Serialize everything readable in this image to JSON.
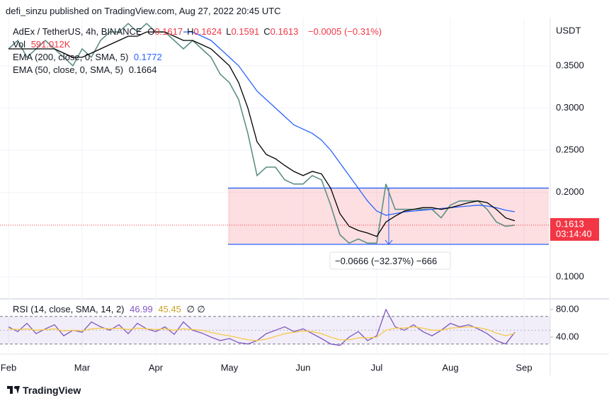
{
  "header": {
    "text": "defi_sinzu published on TradingView.com, Aug 27, 2022 20:45 UTC"
  },
  "footer": {
    "text": "TradingView"
  },
  "chart_data": [
    {
      "type": "line",
      "title": "AdEx / TetherUS, 4h, BINANCE",
      "ohlc": [
        {
          "label": "O",
          "value": 0.1617
        },
        {
          "label": "H",
          "value": 0.1624
        },
        {
          "label": "L",
          "value": 0.1591
        },
        {
          "label": "C",
          "value": 0.1613
        }
      ],
      "change": "−0.0005 (−0.31%)",
      "volume_label": "Vol",
      "volume": "591.012K",
      "axis_label": "USDT",
      "countdown": "03:14:40",
      "categories": [
        "Feb",
        null,
        null,
        null,
        null,
        null,
        null,
        null,
        "Mar",
        null,
        null,
        null,
        null,
        null,
        null,
        null,
        "Apr",
        null,
        null,
        null,
        null,
        null,
        null,
        null,
        "May",
        null,
        null,
        null,
        null,
        null,
        null,
        null,
        "Jun",
        null,
        null,
        null,
        null,
        null,
        null,
        null,
        "Jul",
        null,
        null,
        null,
        null,
        null,
        null,
        null,
        "Aug",
        null,
        null,
        null,
        null,
        null,
        null,
        null,
        "Sep"
      ],
      "color": "#5d8f86",
      "values": [
        0.37,
        0.38,
        0.36,
        0.37,
        0.38,
        0.37,
        0.36,
        0.35,
        0.37,
        0.36,
        0.38,
        0.39,
        0.39,
        0.4,
        0.39,
        0.4,
        0.39,
        0.39,
        0.38,
        0.37,
        0.38,
        0.37,
        0.36,
        0.34,
        0.33,
        0.31,
        0.27,
        0.22,
        0.23,
        0.23,
        0.215,
        0.21,
        0.21,
        0.22,
        0.215,
        0.185,
        0.15,
        0.14,
        0.145,
        0.14,
        0.14,
        0.21,
        0.18,
        0.18,
        0.18,
        0.18,
        0.18,
        0.17,
        0.185,
        0.19,
        0.19,
        0.19,
        0.18,
        0.165,
        0.16,
        0.1613,
        null
      ],
      "series": [
        {
          "name": "EMA (200, close, 0, SMA, 5)",
          "color": "#2962ff",
          "values": [
            null,
            null,
            null,
            null,
            null,
            null,
            null,
            null,
            null,
            null,
            null,
            null,
            null,
            null,
            null,
            null,
            null,
            null,
            null,
            0.39,
            0.39,
            0.385,
            0.38,
            0.37,
            0.36,
            0.35,
            0.335,
            0.32,
            0.31,
            0.3,
            0.29,
            0.28,
            0.275,
            0.27,
            0.262,
            0.25,
            0.235,
            0.22,
            0.205,
            0.19,
            0.178,
            0.173,
            0.175,
            0.177,
            0.178,
            0.179,
            0.18,
            0.181,
            0.182,
            0.183,
            0.184,
            0.185,
            0.184,
            0.182,
            0.179,
            0.1772,
            null
          ]
        },
        {
          "name": "EMA (50, close, 0, SMA, 5)",
          "color": "#000000",
          "values": [
            0.37,
            0.37,
            0.37,
            0.37,
            0.37,
            0.37,
            0.365,
            0.36,
            0.36,
            0.365,
            0.37,
            0.375,
            0.38,
            0.385,
            0.385,
            0.39,
            0.39,
            0.39,
            0.385,
            0.38,
            0.38,
            0.375,
            0.37,
            0.36,
            0.35,
            0.33,
            0.3,
            0.26,
            0.245,
            0.24,
            0.232,
            0.225,
            0.22,
            0.225,
            0.222,
            0.205,
            0.175,
            0.16,
            0.155,
            0.152,
            0.148,
            0.165,
            0.172,
            0.178,
            0.18,
            0.182,
            0.182,
            0.18,
            0.182,
            0.185,
            0.188,
            0.19,
            0.188,
            0.18,
            0.17,
            0.1664,
            null
          ]
        }
      ],
      "range": [
        0.2052,
        0.1386
      ],
      "measure": "−0.0666 (−32.37%) −666",
      "ylim": [
        0.0774,
        0.4027
      ],
      "yticks": [
        {
          "value": 0.35,
          "label": "0.3500"
        },
        {
          "value": 0.3,
          "label": "0.3000"
        },
        {
          "value": 0.25,
          "label": "0.2500"
        },
        {
          "value": 0.2,
          "label": "0.2000"
        },
        {
          "value": 0.1,
          "label": "0.1000"
        }
      ]
    },
    {
      "type": "line",
      "title": "RSI (14, close, SMA, 14, 2)",
      "flags": "∅ ∅",
      "series": [
        {
          "color": "#7e57c2",
          "values": [
            55,
            48,
            60,
            45,
            52,
            58,
            42,
            50,
            47,
            62,
            55,
            50,
            58,
            45,
            60,
            52,
            48,
            55,
            44,
            62,
            50,
            46,
            40,
            35,
            38,
            32,
            30,
            35,
            45,
            50,
            55,
            48,
            52,
            45,
            38,
            30,
            28,
            40,
            48,
            35,
            42,
            80,
            55,
            50,
            58,
            48,
            42,
            50,
            60,
            55,
            58,
            52,
            45,
            35,
            30,
            46.99,
            null
          ]
        },
        {
          "color": "#f7c948",
          "values": [
            52,
            51,
            52,
            50,
            51,
            52,
            49,
            50,
            49,
            52,
            53,
            52,
            53,
            51,
            53,
            52,
            51,
            52,
            50,
            52,
            51,
            50,
            47,
            44,
            42,
            39,
            36,
            35,
            37,
            41,
            45,
            47,
            49,
            48,
            45,
            40,
            36,
            36,
            39,
            39,
            40,
            50,
            53,
            53,
            55,
            53,
            50,
            50,
            53,
            54,
            55,
            54,
            51,
            46,
            42,
            45.45,
            null
          ]
        }
      ],
      "bands": [
        70,
        30
      ],
      "midline": 50,
      "ylim": [
        20.5,
        90.3
      ],
      "yticks": [
        {
          "value": 80,
          "label": "80.00"
        },
        {
          "value": 40,
          "label": "40.00"
        }
      ]
    }
  ]
}
